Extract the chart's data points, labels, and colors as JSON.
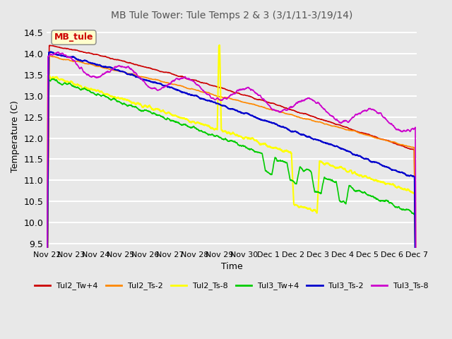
{
  "title": "MB Tule Tower: Tule Temps 2 & 3 (3/1/11-3/19/14)",
  "xlabel": "Time",
  "ylabel": "Temperature (C)",
  "ylim": [
    9.4,
    14.7
  ],
  "yticks": [
    9.5,
    10.0,
    10.5,
    11.0,
    11.5,
    12.0,
    12.5,
    13.0,
    13.5,
    14.0,
    14.5
  ],
  "xtick_labels": [
    "Nov 22",
    "Nov 23",
    "Nov 24",
    "Nov 25",
    "Nov 26",
    "Nov 27",
    "Nov 28",
    "Nov 29",
    "Nov 30",
    "Dec 1",
    "Dec 2",
    "Dec 3",
    "Dec 4",
    "Dec 5",
    "Dec 6",
    "Dec 7"
  ],
  "series": {
    "Tul2_Tw+4": {
      "color": "#cc0000",
      "lw": 1.2
    },
    "Tul2_Ts-2": {
      "color": "#ff8800",
      "lw": 1.2
    },
    "Tul2_Ts-8": {
      "color": "#ffff00",
      "lw": 1.5
    },
    "Tul3_Tw+4": {
      "color": "#00cc00",
      "lw": 1.2
    },
    "Tul3_Ts-2": {
      "color": "#0000cc",
      "lw": 1.5
    },
    "Tul3_Ts-8": {
      "color": "#cc00cc",
      "lw": 1.2
    }
  },
  "legend_text": "MB_tule",
  "bg_color": "#e8e8e8",
  "grid_color": "#ffffff",
  "title_color": "#555555"
}
